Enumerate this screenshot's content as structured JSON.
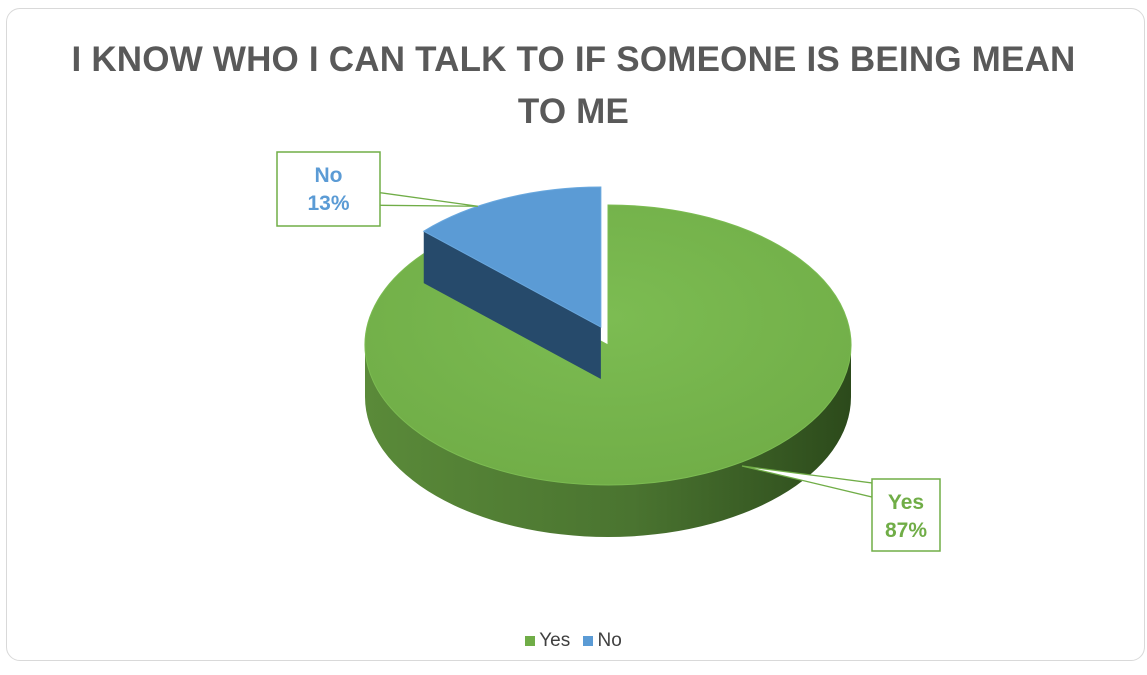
{
  "chart_data": {
    "type": "pie",
    "title": "I KNOW WHO I CAN TALK TO IF SOMEONE IS BEING MEAN TO ME",
    "categories": [
      "Yes",
      "No"
    ],
    "values": [
      87,
      13
    ],
    "data_labels": [
      {
        "category": "Yes",
        "percent": "87%"
      },
      {
        "category": "No",
        "percent": "13%"
      }
    ],
    "legend": {
      "position": "bottom",
      "entries": [
        "Yes",
        "No"
      ]
    },
    "style": "3d-exploded",
    "colors": {
      "Yes": "#70ad47",
      "No": "#5b9bd5",
      "Yes_dark": "#3f6427",
      "No_dark": "#264a6b"
    }
  }
}
